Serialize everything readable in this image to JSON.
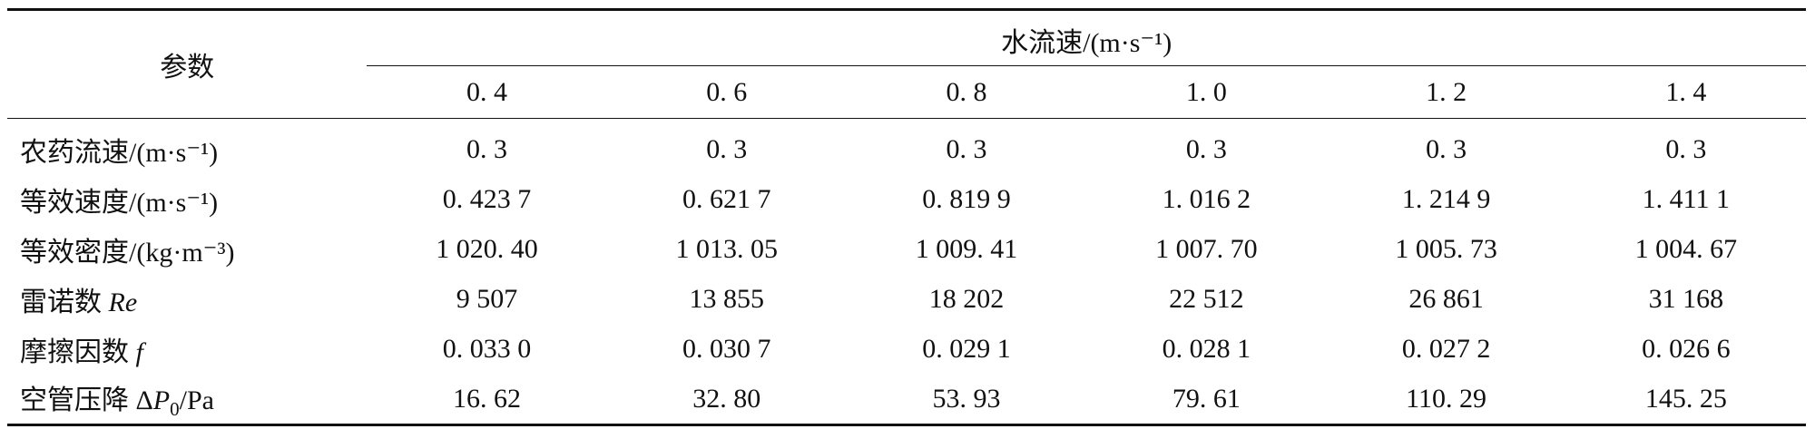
{
  "table": {
    "param_header": "参数",
    "group_header": "水流速/(m·s⁻¹)",
    "speed_columns": [
      "0. 4",
      "0. 6",
      "0. 8",
      "1. 0",
      "1. 2",
      "1. 4"
    ],
    "rows": [
      {
        "label": "农药流速/(m·s⁻¹)",
        "values": [
          "0. 3",
          "0. 3",
          "0. 3",
          "0. 3",
          "0. 3",
          "0. 3"
        ]
      },
      {
        "label": "等效速度/(m·s⁻¹)",
        "values": [
          "0. 423 7",
          "0. 621 7",
          "0. 819 9",
          "1. 016 2",
          "1. 214 9",
          "1. 411 1"
        ]
      },
      {
        "label": "等效密度/(kg·m⁻³)",
        "values": [
          "1 020. 40",
          "1 013. 05",
          "1 009. 41",
          "1 007. 70",
          "1 005. 73",
          "1 004. 67"
        ]
      },
      {
        "label_prefix": "雷诺数 ",
        "label_symbol": "Re",
        "values": [
          "9 507",
          "13 855",
          "18 202",
          "22 512",
          "26 861",
          "31 168"
        ]
      },
      {
        "label_prefix": "摩擦因数 ",
        "label_symbol": "f",
        "values": [
          "0. 033 0",
          "0. 030 7",
          "0. 029 1",
          "0. 028 1",
          "0. 027 2",
          "0. 026 6"
        ]
      },
      {
        "label_prefix": "空管压降 Δ",
        "label_symbol": "P",
        "label_subscript": "0",
        "label_suffix": "/Pa",
        "values": [
          "16. 62",
          "32. 80",
          "53. 93",
          "79. 61",
          "110. 29",
          "145. 25"
        ]
      }
    ]
  }
}
